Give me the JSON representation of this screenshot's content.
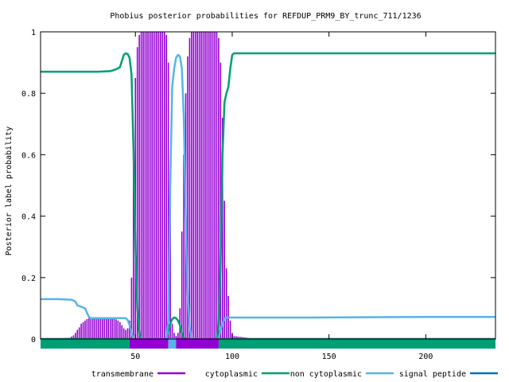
{
  "chart_data": {
    "type": "line",
    "title": "Phobius posterior probabilities for REFDUP_PRM9_BY_trunc_711/1236",
    "xlabel": "",
    "ylabel": "Posterior label probability",
    "xlim": [
      1,
      236
    ],
    "ylim": [
      0,
      1
    ],
    "x_ticks": [
      50,
      100,
      150,
      200
    ],
    "y_ticks": [
      0,
      0.2,
      0.4,
      0.6,
      0.8,
      1
    ],
    "grid": false,
    "legend_position": "bottom",
    "series": [
      {
        "name": "transmembrane",
        "style": "impulses",
        "color": "#9400d3",
        "points": [
          [
            1,
            0.002
          ],
          [
            10,
            0.002
          ],
          [
            16,
            0.004
          ],
          [
            18,
            0.012
          ],
          [
            19,
            0.02
          ],
          [
            20,
            0.03
          ],
          [
            21,
            0.038
          ],
          [
            22,
            0.05
          ],
          [
            23,
            0.055
          ],
          [
            24,
            0.06
          ],
          [
            25,
            0.065
          ],
          [
            26,
            0.068
          ],
          [
            27,
            0.068
          ],
          [
            28,
            0.068
          ],
          [
            29,
            0.068
          ],
          [
            30,
            0.068
          ],
          [
            31,
            0.068
          ],
          [
            32,
            0.068
          ],
          [
            33,
            0.068
          ],
          [
            34,
            0.068
          ],
          [
            35,
            0.068
          ],
          [
            36,
            0.068
          ],
          [
            37,
            0.068
          ],
          [
            38,
            0.067
          ],
          [
            39,
            0.066
          ],
          [
            40,
            0.064
          ],
          [
            41,
            0.06
          ],
          [
            42,
            0.055
          ],
          [
            43,
            0.045
          ],
          [
            44,
            0.035
          ],
          [
            45,
            0.03
          ],
          [
            46,
            0.035
          ],
          [
            47,
            0.06
          ],
          [
            48,
            0.2
          ],
          [
            49,
            0.65
          ],
          [
            50,
            0.85
          ],
          [
            51,
            0.95
          ],
          [
            52,
            0.99
          ],
          [
            53,
            1.0
          ],
          [
            54,
            1.0
          ],
          [
            55,
            1.0
          ],
          [
            56,
            1.0
          ],
          [
            57,
            1.0
          ],
          [
            58,
            1.0
          ],
          [
            59,
            1.0
          ],
          [
            60,
            1.0
          ],
          [
            61,
            1.0
          ],
          [
            62,
            1.0
          ],
          [
            63,
            1.0
          ],
          [
            64,
            1.0
          ],
          [
            65,
            1.0
          ],
          [
            66,
            0.99
          ],
          [
            67,
            0.9
          ],
          [
            68,
            0.45
          ],
          [
            69,
            0.05
          ],
          [
            70,
            0.02
          ],
          [
            71,
            0.01
          ],
          [
            72,
            0.02
          ],
          [
            73,
            0.1
          ],
          [
            74,
            0.35
          ],
          [
            75,
            0.6
          ],
          [
            76,
            0.8
          ],
          [
            77,
            0.92
          ],
          [
            78,
            0.98
          ],
          [
            79,
            1.0
          ],
          [
            80,
            1.0
          ],
          [
            81,
            1.0
          ],
          [
            82,
            1.0
          ],
          [
            83,
            1.0
          ],
          [
            84,
            1.0
          ],
          [
            85,
            1.0
          ],
          [
            86,
            1.0
          ],
          [
            87,
            1.0
          ],
          [
            88,
            1.0
          ],
          [
            89,
            1.0
          ],
          [
            90,
            1.0
          ],
          [
            91,
            1.0
          ],
          [
            92,
            1.0
          ],
          [
            93,
            0.98
          ],
          [
            94,
            0.9
          ],
          [
            95,
            0.72
          ],
          [
            96,
            0.45
          ],
          [
            97,
            0.23
          ],
          [
            98,
            0.14
          ],
          [
            99,
            0.06
          ],
          [
            100,
            0.02
          ],
          [
            101,
            0.01
          ],
          [
            110,
            0.002
          ],
          [
            236,
            0.001
          ]
        ]
      },
      {
        "name": "cytoplasmic",
        "style": "line",
        "color": "#9400d3",
        "points": [
          [
            1,
            0.0
          ],
          [
            236,
            0.0
          ]
        ]
      },
      {
        "name": "non cytoplasmic",
        "style": "line",
        "color": "#009e73",
        "points": [
          [
            1,
            0.87
          ],
          [
            10,
            0.87
          ],
          [
            20,
            0.87
          ],
          [
            30,
            0.87
          ],
          [
            37,
            0.872
          ],
          [
            40,
            0.878
          ],
          [
            42,
            0.885
          ],
          [
            43,
            0.905
          ],
          [
            44,
            0.925
          ],
          [
            45,
            0.93
          ],
          [
            46,
            0.928
          ],
          [
            47,
            0.915
          ],
          [
            48,
            0.86
          ],
          [
            49,
            0.62
          ],
          [
            50,
            0.3
          ],
          [
            51,
            0.1
          ],
          [
            52,
            0.02
          ],
          [
            53,
            0.0
          ],
          [
            65,
            0.0
          ],
          [
            66,
            0.005
          ],
          [
            67,
            0.025
          ],
          [
            68,
            0.05
          ],
          [
            69,
            0.065
          ],
          [
            70,
            0.07
          ],
          [
            71,
            0.068
          ],
          [
            72,
            0.06
          ],
          [
            73,
            0.045
          ],
          [
            74,
            0.02
          ],
          [
            75,
            0.005
          ],
          [
            76,
            0.0
          ],
          [
            92,
            0.0
          ],
          [
            93,
            0.05
          ],
          [
            94,
            0.25
          ],
          [
            95,
            0.6
          ],
          [
            96,
            0.77
          ],
          [
            97,
            0.8
          ],
          [
            98,
            0.82
          ],
          [
            99,
            0.88
          ],
          [
            100,
            0.925
          ],
          [
            101,
            0.93
          ],
          [
            236,
            0.93
          ]
        ]
      },
      {
        "name": "signal peptide",
        "style": "line",
        "color": "#56b4e9",
        "points": [
          [
            1,
            0.13
          ],
          [
            10,
            0.13
          ],
          [
            17,
            0.128
          ],
          [
            19,
            0.122
          ],
          [
            20,
            0.11
          ],
          [
            22,
            0.105
          ],
          [
            24,
            0.1
          ],
          [
            25,
            0.085
          ],
          [
            26,
            0.072
          ],
          [
            27,
            0.068
          ],
          [
            30,
            0.068
          ],
          [
            40,
            0.068
          ],
          [
            45,
            0.068
          ],
          [
            46,
            0.062
          ],
          [
            47,
            0.045
          ],
          [
            48,
            0.02
          ],
          [
            49,
            0.0
          ],
          [
            66,
            0.0
          ],
          [
            67,
            0.06
          ],
          [
            68,
            0.5
          ],
          [
            69,
            0.82
          ],
          [
            70,
            0.88
          ],
          [
            71,
            0.915
          ],
          [
            72,
            0.925
          ],
          [
            73,
            0.92
          ],
          [
            74,
            0.88
          ],
          [
            75,
            0.72
          ],
          [
            76,
            0.4
          ],
          [
            77,
            0.15
          ],
          [
            78,
            0.04
          ],
          [
            79,
            0.005
          ],
          [
            80,
            0.0
          ],
          [
            93,
            0.0
          ],
          [
            94,
            0.03
          ],
          [
            95,
            0.05
          ],
          [
            96,
            0.065
          ],
          [
            97,
            0.07
          ],
          [
            100,
            0.07
          ],
          [
            140,
            0.07
          ],
          [
            200,
            0.072
          ],
          [
            236,
            0.072
          ]
        ]
      }
    ],
    "topology_track": {
      "segments": [
        {
          "label": "non cytoplasmic",
          "start": 1,
          "end": 47,
          "color": "#009e73"
        },
        {
          "label": "transmembrane",
          "start": 47,
          "end": 67,
          "color": "#9400d3"
        },
        {
          "label": "signal peptide",
          "start": 67,
          "end": 71,
          "color": "#56b4e9"
        },
        {
          "label": "transmembrane",
          "start": 71,
          "end": 93,
          "color": "#9400d3"
        },
        {
          "label": "non cytoplasmic",
          "start": 93,
          "end": 236,
          "color": "#009e73"
        }
      ]
    }
  }
}
